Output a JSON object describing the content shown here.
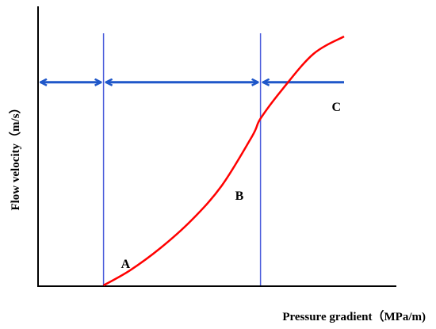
{
  "chart_data": {
    "type": "line",
    "xlabel": "Pressure gradient（MPa/m)",
    "ylabel": "Flow velocity（m/s）",
    "grid": false,
    "legend": "none",
    "xlim": [
      0,
      1
    ],
    "ylim": [
      0,
      1
    ],
    "series": [
      {
        "color": "#ff0000",
        "x": [
          0.214,
          0.3,
          0.4,
          0.5,
          0.6,
          0.7,
          0.727,
          0.8,
          0.9,
          1.0
        ],
        "y": [
          0,
          0.06,
          0.15,
          0.26,
          0.4,
          0.6,
          0.67,
          0.79,
          0.93,
          1.0
        ]
      }
    ],
    "markers": [
      {
        "label": "A",
        "x": 0.214,
        "y": 0.0
      },
      {
        "label": "B",
        "x": 0.727,
        "y": 0.322
      },
      {
        "label": "C",
        "x": 0.939,
        "y": 0.816
      }
    ],
    "vertical_lines": [
      {
        "x": 0.214,
        "color": "#4a5bdb"
      },
      {
        "x": 0.727,
        "color": "#4a5bdb"
      }
    ],
    "range_arrows": {
      "y": 0.816,
      "color": "#1f57c9",
      "segments": [
        {
          "from": 0.0,
          "to": 0.214
        },
        {
          "from": 0.214,
          "to": 0.727
        },
        {
          "from": 0.727,
          "to": 1.0
        }
      ]
    },
    "colors": {
      "axis": "#000000",
      "curve": "#ff0000",
      "lines": "#4a5bdb",
      "arrows": "#1f57c9"
    }
  }
}
